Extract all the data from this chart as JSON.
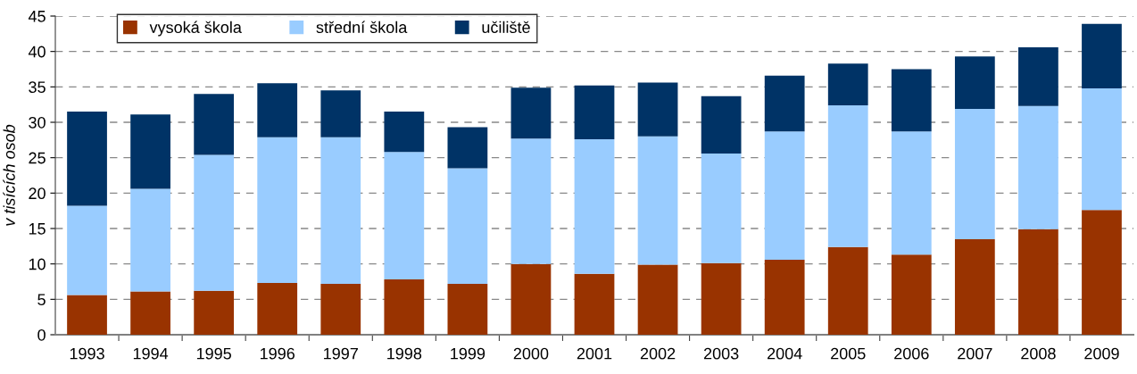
{
  "chart_data": {
    "type": "bar",
    "stacked": true,
    "ylabel": "v tisících osob",
    "categories": [
      "1993",
      "1994",
      "1995",
      "1996",
      "1997",
      "1998",
      "1999",
      "2000",
      "2001",
      "2002",
      "2003",
      "2004",
      "2005",
      "2006",
      "2007",
      "2008",
      "2009"
    ],
    "series": [
      {
        "name": "vysoká škola",
        "color": "#993300",
        "values": [
          5.6,
          6.1,
          6.2,
          7.3,
          7.2,
          7.8,
          7.2,
          10.0,
          8.6,
          9.9,
          10.1,
          10.6,
          12.4,
          11.3,
          13.5,
          14.9,
          17.6
        ]
      },
      {
        "name": "střední škola",
        "color": "#99ccff",
        "values": [
          12.6,
          14.5,
          19.2,
          20.6,
          20.7,
          18.0,
          16.3,
          17.7,
          19.0,
          18.1,
          15.5,
          18.1,
          20.0,
          17.4,
          18.4,
          17.4,
          17.2
        ]
      },
      {
        "name": "učiliště",
        "color": "#003366",
        "values": [
          13.3,
          10.5,
          8.6,
          7.6,
          6.6,
          5.7,
          5.8,
          7.2,
          7.6,
          7.6,
          8.1,
          7.9,
          5.9,
          8.8,
          7.4,
          8.3,
          9.1
        ]
      }
    ],
    "ylim": [
      0,
      45
    ],
    "yticks": [
      0,
      5,
      10,
      15,
      20,
      25,
      30,
      35,
      40,
      45
    ],
    "grid": "y",
    "legend": "top left"
  }
}
